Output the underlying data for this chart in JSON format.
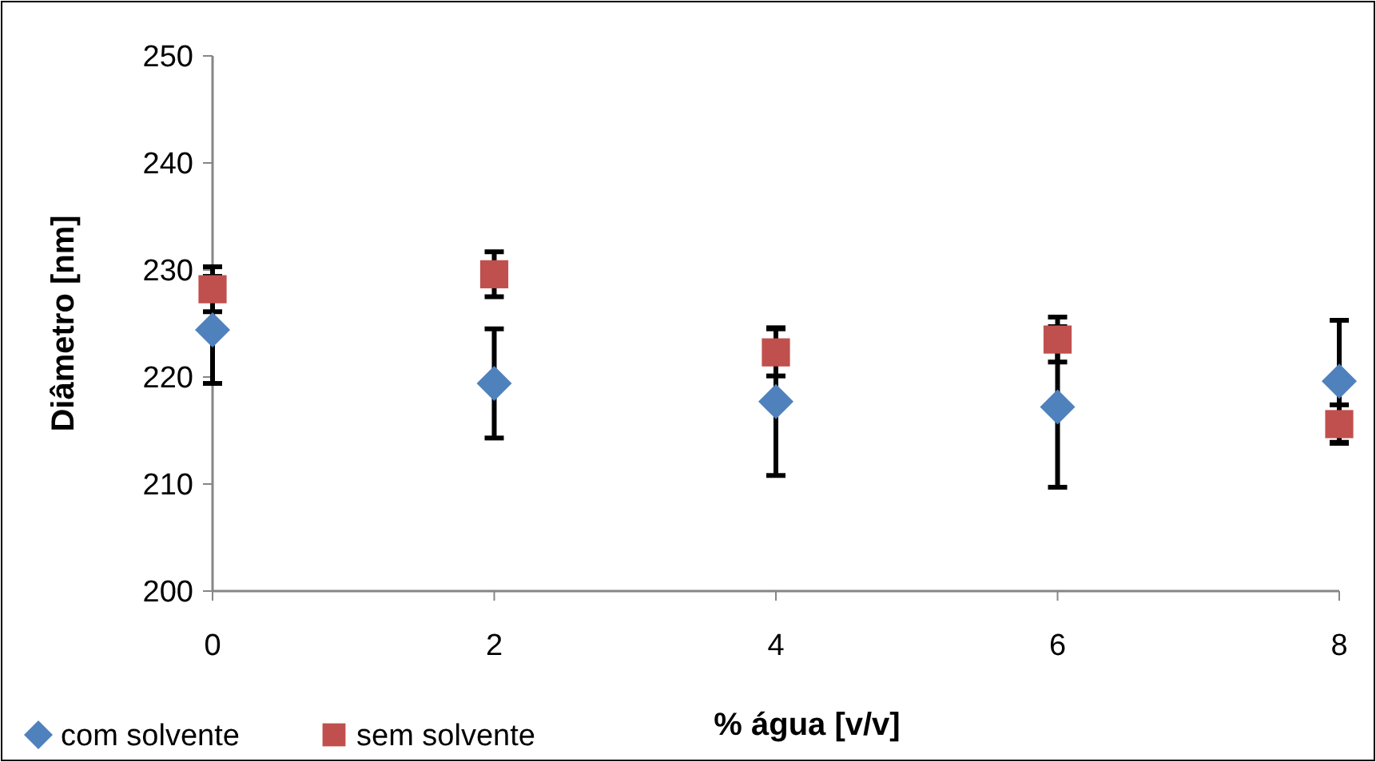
{
  "chart_data": {
    "type": "scatter",
    "xlabel": "% água [v/v]",
    "ylabel": "Diâmetro [nm]",
    "x": [
      0,
      2,
      4,
      6,
      8
    ],
    "xlim": [
      0,
      8
    ],
    "xticks": [
      0,
      2,
      4,
      6,
      8
    ],
    "ylim": [
      200,
      250
    ],
    "yticks": [
      200,
      210,
      220,
      230,
      240,
      250
    ],
    "grid": false,
    "legend": "bottom left",
    "series": [
      {
        "name": "com solvente",
        "color": "#4f81bd",
        "marker": "diamond",
        "values": [
          224.4,
          219.4,
          217.7,
          217.2,
          219.6
        ],
        "errors": [
          5,
          5.1,
          6.9,
          7.5,
          5.7
        ]
      },
      {
        "name": "sem solvente",
        "color": "#c0504d",
        "marker": "square",
        "values": [
          228.2,
          229.6,
          222.3,
          223.5,
          215.6
        ],
        "errors": [
          2.1,
          2.1,
          2.2,
          2.1,
          1.8
        ]
      }
    ]
  }
}
